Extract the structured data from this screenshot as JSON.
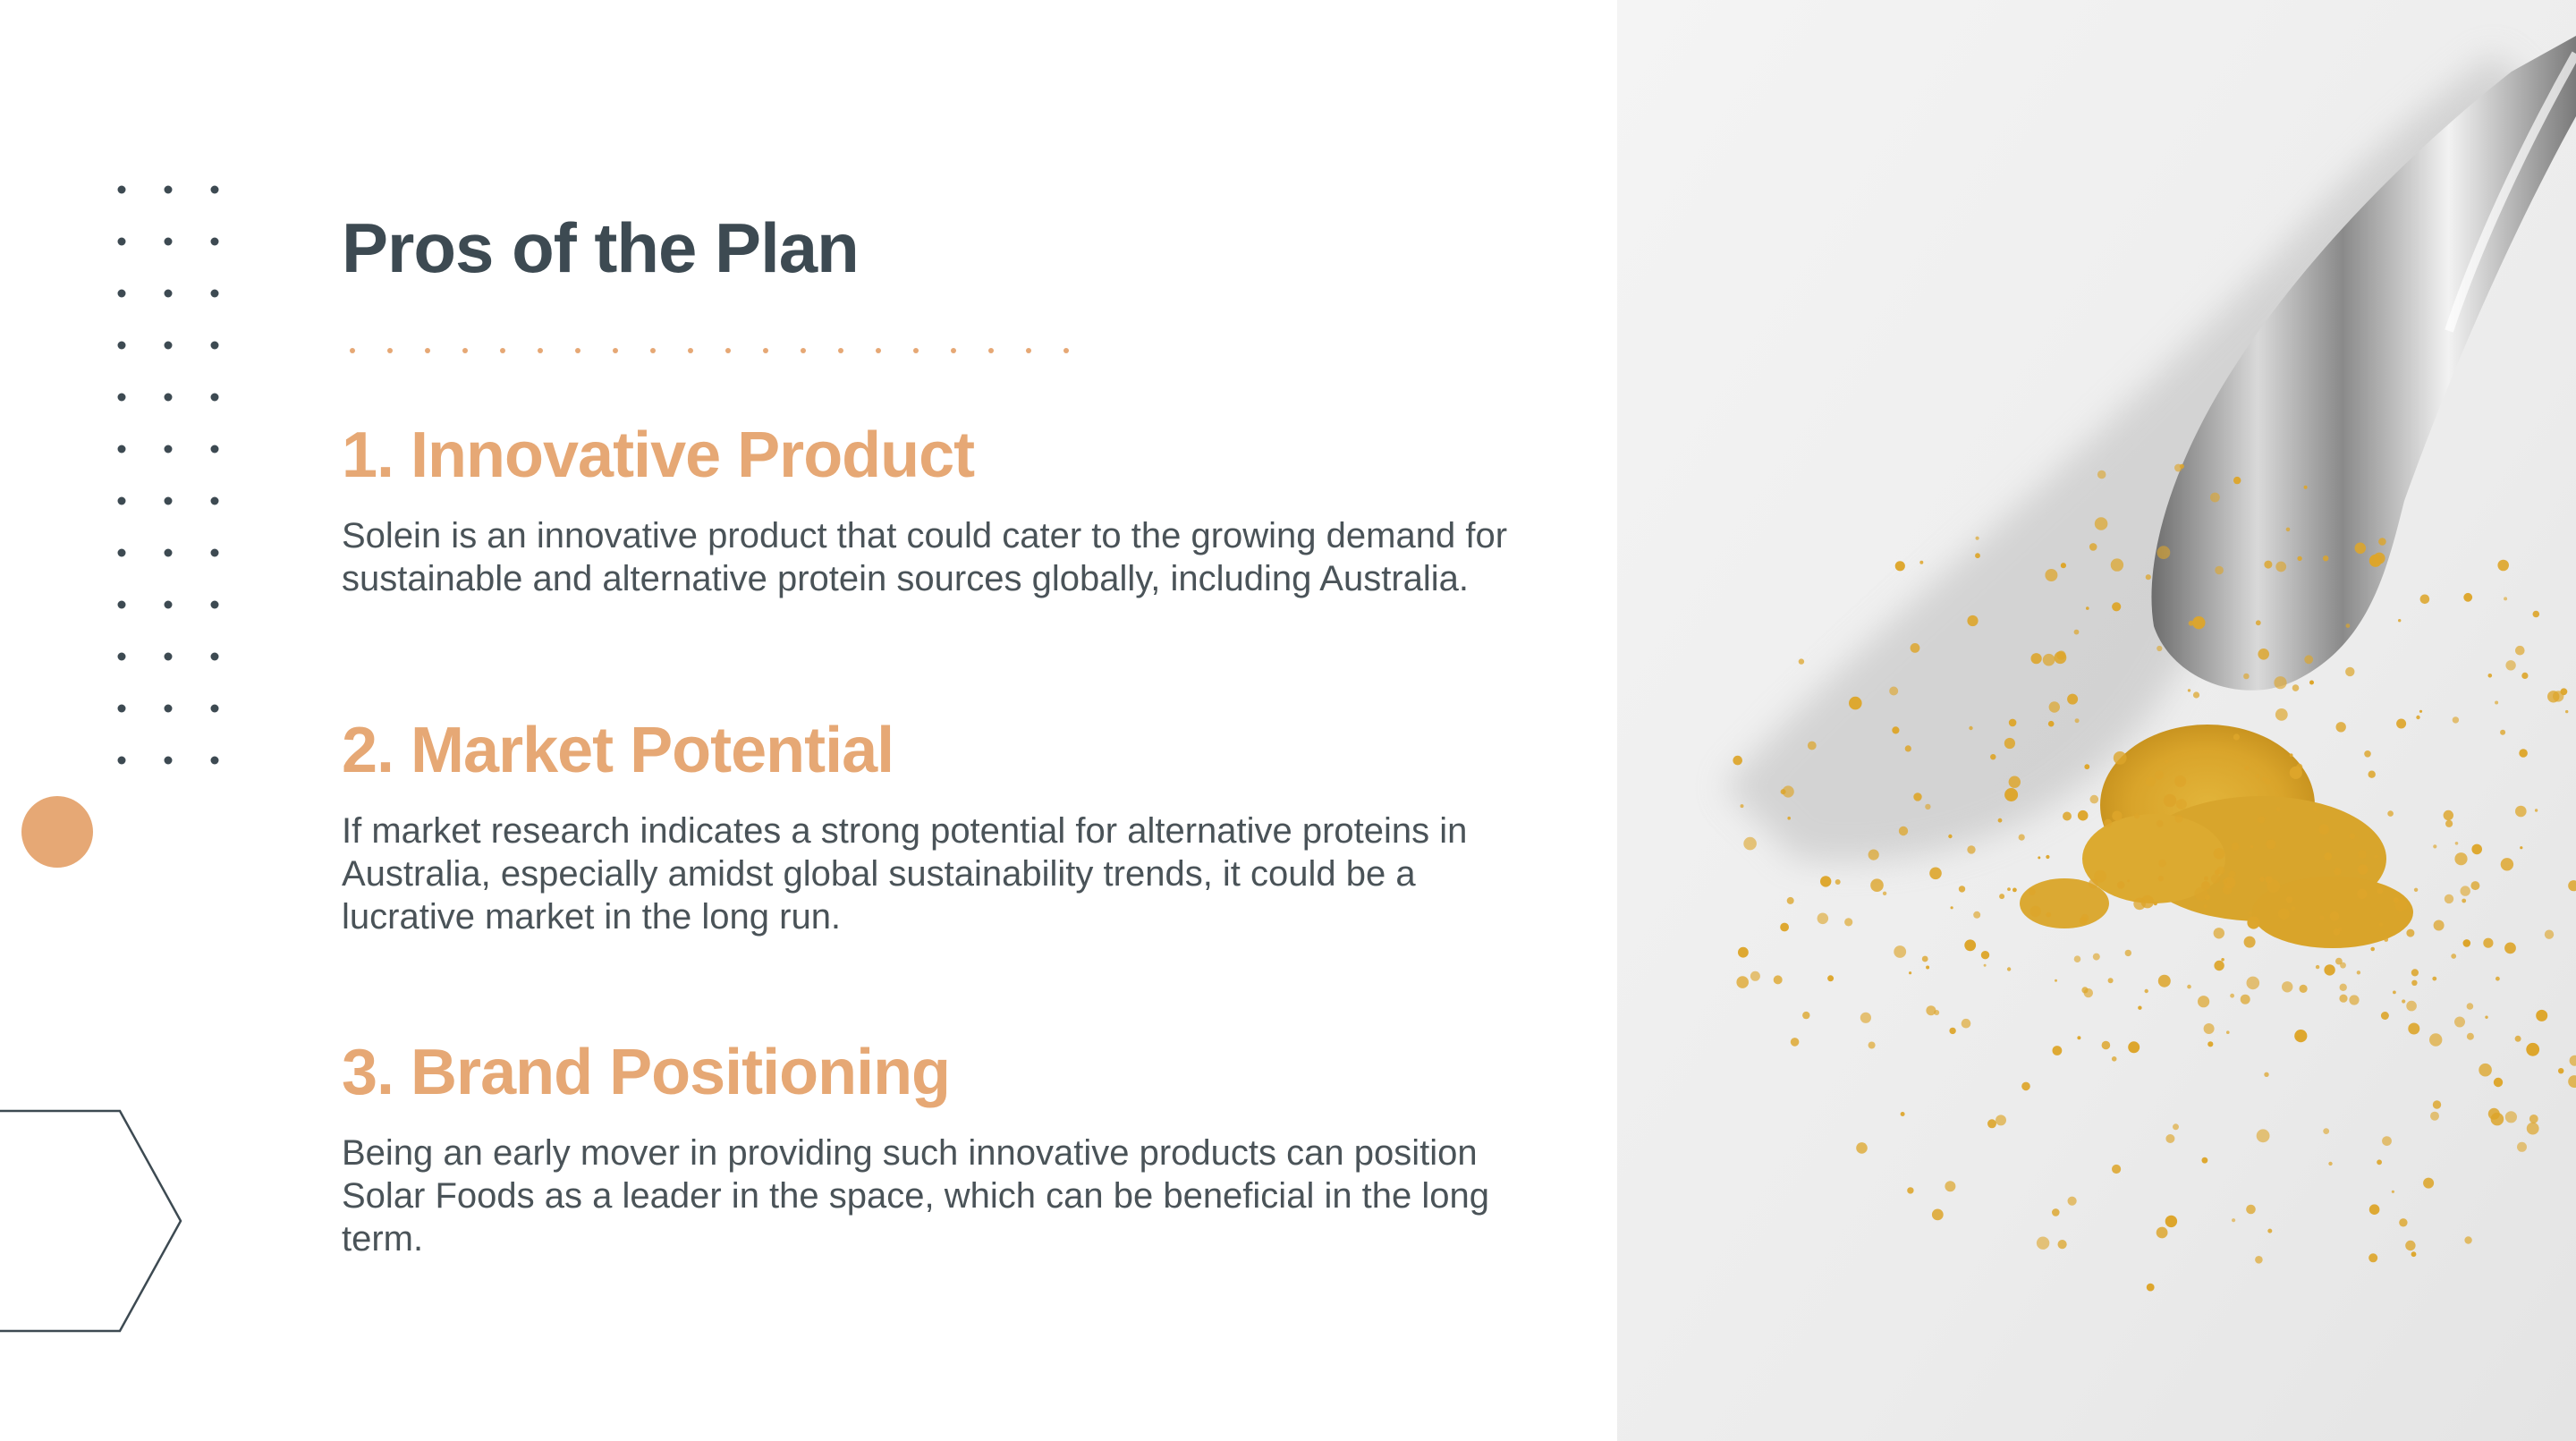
{
  "slide": {
    "title": "Pros of the Plan",
    "accent_color": "#e6a875",
    "title_color": "#3d4a52",
    "body_color": "#4a5358",
    "sections": [
      {
        "heading": "1. Innovative Product",
        "body": "Solein is an innovative product that could cater to the growing demand for sustainable and alternative protein sources globally, including Australia."
      },
      {
        "heading": "2. Market Potential",
        "body": "If market research indicates a strong potential for alternative proteins in Australia, especially amidst global sustainability trends, it could be a lucrative market in the long run."
      },
      {
        "heading": "3. Brand Positioning",
        "body": "Being an early mover in providing such innovative products can position Solar Foods as a leader in the space, which can be beneficial in the long term."
      }
    ]
  },
  "decor": {
    "dot_grid_icon": "dot-grid-icon",
    "circle_icon": "circle-icon",
    "arrow_icon": "chevron-outline-icon"
  },
  "photo": {
    "subject": "spoon-with-yellow-powder-photo"
  }
}
